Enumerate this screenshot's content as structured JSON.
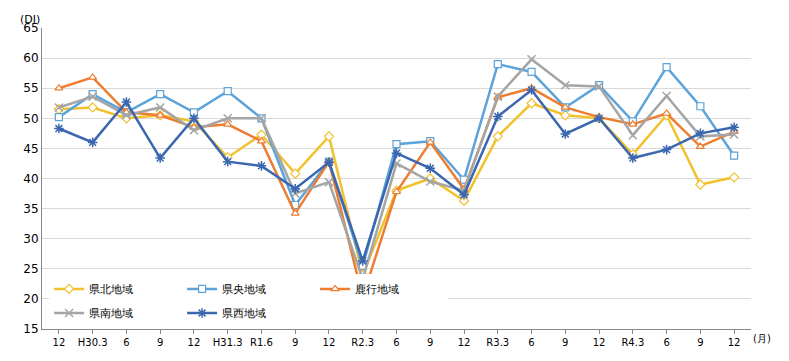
{
  "chart_data": {
    "type": "line",
    "y_label": "(DI)",
    "x_label": "(月)",
    "categories": [
      "12",
      "H30.3",
      "6",
      "9",
      "12",
      "H31.3",
      "R1.6",
      "9",
      "12",
      "R2.3",
      "6",
      "9",
      "12",
      "R3.3",
      "6",
      "9",
      "12",
      "R4.3",
      "6",
      "9",
      "12"
    ],
    "series": [
      {
        "name": "県北地域",
        "color": "#f2c12e",
        "marker": "diamond",
        "values": [
          51.5,
          51.8,
          50.0,
          50.5,
          49.5,
          43.5,
          47.3,
          40.8,
          47.0,
          24.0,
          38.0,
          40.0,
          36.3,
          47.0,
          52.5,
          50.5,
          50.0,
          44.0,
          50.5,
          39.0,
          40.2
        ]
      },
      {
        "name": "県央地域",
        "color": "#5ba3d9",
        "marker": "square",
        "values": [
          50.2,
          54.0,
          51.0,
          54.0,
          51.0,
          54.5,
          50.0,
          35.6,
          42.8,
          25.5,
          45.7,
          46.2,
          39.8,
          59.0,
          57.7,
          51.8,
          55.5,
          49.5,
          58.5,
          52.0,
          43.8
        ]
      },
      {
        "name": "鹿行地域",
        "color": "#ed7d31",
        "marker": "triangle",
        "values": [
          55.0,
          56.8,
          51.0,
          50.5,
          48.5,
          49.0,
          46.2,
          34.2,
          42.8,
          20.3,
          37.8,
          46.0,
          38.2,
          53.5,
          55.0,
          51.8,
          50.2,
          49.0,
          50.8,
          45.3,
          47.8
        ]
      },
      {
        "name": "県南地域",
        "color": "#a5a5a5",
        "marker": "x",
        "values": [
          51.8,
          53.6,
          50.5,
          51.8,
          48.0,
          50.0,
          50.0,
          37.5,
          39.4,
          23.3,
          42.5,
          39.5,
          38.0,
          53.6,
          59.8,
          55.5,
          55.3,
          47.2,
          53.7,
          47.0,
          47.3
        ]
      },
      {
        "name": "県西地域",
        "color": "#3a67b0",
        "marker": "asterisk",
        "values": [
          48.3,
          46.0,
          52.7,
          43.4,
          50.0,
          42.8,
          42.1,
          38.3,
          42.7,
          26.3,
          44.2,
          41.7,
          37.3,
          50.3,
          54.7,
          47.4,
          50.0,
          43.4,
          44.8,
          47.5,
          48.5
        ]
      }
    ],
    "ylim": [
      15,
      65
    ],
    "yticks": [
      15,
      20,
      25,
      30,
      35,
      40,
      45,
      50,
      55,
      60,
      65
    ],
    "grid": true,
    "legend": "lower left"
  }
}
